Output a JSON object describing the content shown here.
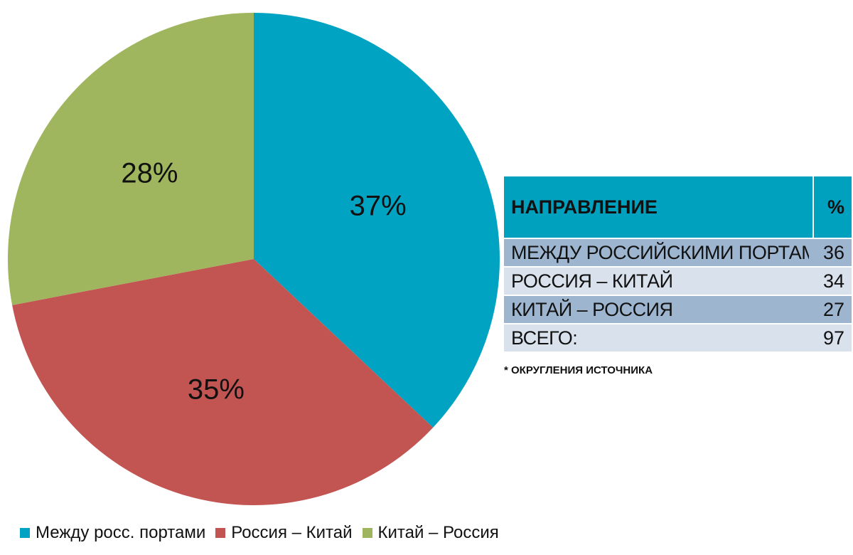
{
  "chart_data": {
    "type": "pie",
    "slices": [
      {
        "name": "Между росс. портами",
        "value": 37,
        "label": "37%",
        "color": "#00a3c1"
      },
      {
        "name": "Россия – Китай",
        "value": 35,
        "label": "35%",
        "color": "#c25552"
      },
      {
        "name": "Китай – Россия",
        "value": 28,
        "label": "28%",
        "color": "#9fb65e"
      }
    ],
    "legend_placement": "bottom"
  },
  "table": {
    "header": {
      "direction": "НАПРАВЛЕНИЕ",
      "percent": "%"
    },
    "rows": [
      {
        "direction": "МЕЖДУ РОССИЙСКИМИ ПОРТАМИ",
        "value": "36"
      },
      {
        "direction": "РОССИЯ – КИТАЙ",
        "value": "34"
      },
      {
        "direction": "КИТАЙ – РОССИЯ",
        "value": "27"
      },
      {
        "direction": "ВСЕГО:",
        "value": "97"
      }
    ],
    "footnote": "* ОКРУГЛЕНИЯ ИСТОЧНИКА"
  }
}
